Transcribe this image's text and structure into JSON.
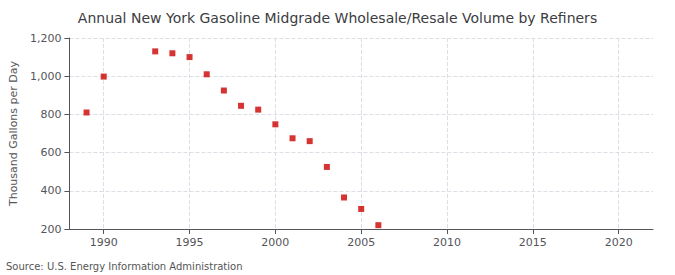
{
  "chart_data": {
    "type": "scatter",
    "title": "Annual New York Gasoline Midgrade Wholesale/Resale Volume by Refiners",
    "ylabel": "Thousand Gallons per Day",
    "source": "Source: U.S. Energy Information Administration",
    "x": [
      1989,
      1990,
      1993,
      1994,
      1995,
      1996,
      1997,
      1998,
      1999,
      2000,
      2001,
      2002,
      2003,
      2004,
      2005,
      2006
    ],
    "values": [
      810,
      998,
      1130,
      1120,
      1100,
      1010,
      925,
      845,
      825,
      748,
      675,
      660,
      525,
      365,
      305,
      220
    ],
    "color": "#cc0000",
    "marker": "square",
    "xlim": [
      1988,
      2022
    ],
    "xticks": [
      1990,
      1995,
      2000,
      2005,
      2010,
      2015,
      2020
    ],
    "ylim": [
      200,
      1200
    ],
    "yticks": [
      200,
      400,
      600,
      800,
      {
        "value": 1000,
        "label": "1,000"
      },
      {
        "value": 1200,
        "label": "1,200"
      }
    ],
    "grid": true
  }
}
